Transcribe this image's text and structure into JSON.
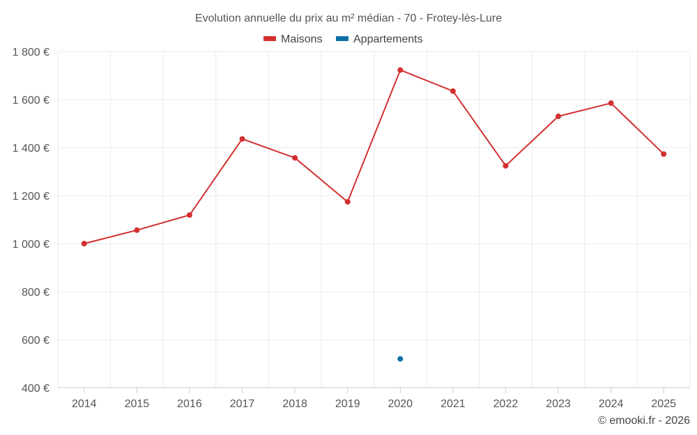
{
  "chart_data": {
    "type": "line",
    "title": "Evolution annuelle du prix au m² médian - 70 - Frotey-lès-Lure",
    "categories": [
      "2014",
      "2015",
      "2016",
      "2017",
      "2018",
      "2019",
      "2020",
      "2021",
      "2022",
      "2023",
      "2024",
      "2025"
    ],
    "series": [
      {
        "name": "Maisons",
        "color": "#d32f2f",
        "values": [
          1000,
          1056,
          1119,
          1436,
          1357,
          1174,
          1723,
          1635,
          1324,
          1530,
          1585,
          1373
        ]
      },
      {
        "name": "Appartements",
        "color": "#0d6fa6",
        "values": [
          null,
          null,
          null,
          null,
          null,
          null,
          520,
          null,
          null,
          null,
          null,
          null
        ]
      }
    ],
    "ylim": [
      400,
      1800
    ],
    "yticks": [
      400,
      600,
      800,
      1000,
      1200,
      1400,
      1600,
      1800
    ],
    "ytick_labels": [
      "400 €",
      "600 €",
      "800 €",
      "1 000 €",
      "1 200 €",
      "1 400 €",
      "1 600 €",
      "1 800 €"
    ],
    "xlabel": "",
    "ylabel": "",
    "grid": true,
    "legend_position": "top-center",
    "credit": "© emooki.fr - 2026"
  }
}
